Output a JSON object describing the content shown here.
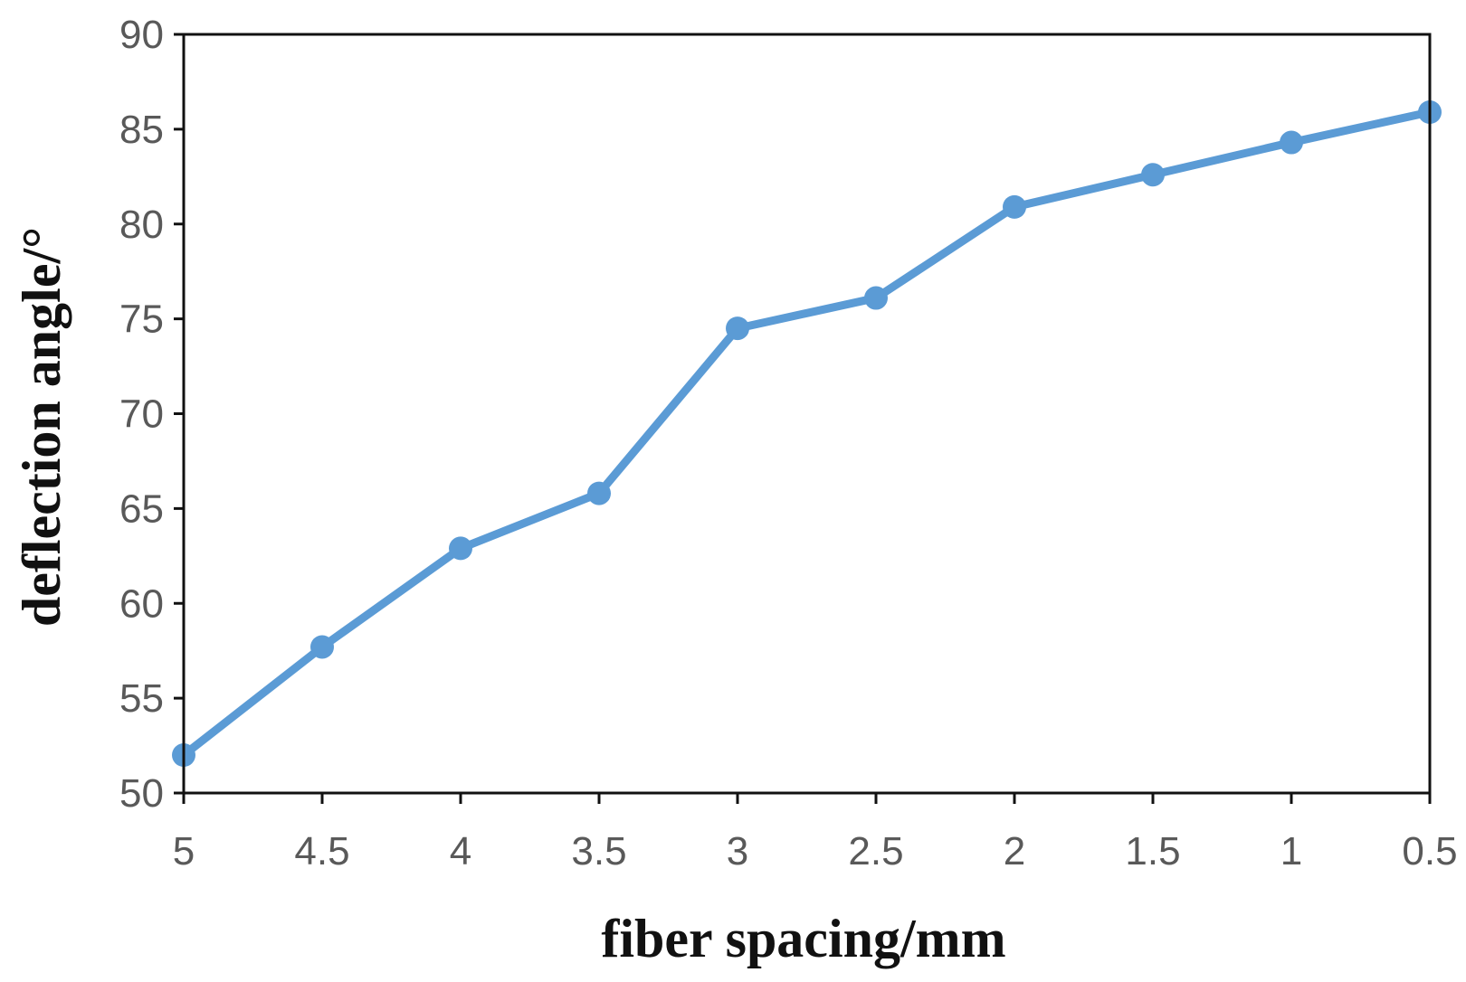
{
  "colors": {
    "series": "#5b9bd5",
    "frame": "#111111",
    "tick_text": "#595959",
    "title_text": "#111111"
  },
  "chart_data": {
    "type": "line",
    "xlabel": "fiber spacing/mm",
    "ylabel": "deflection angle/°",
    "categories": [
      "5",
      "4.5",
      "4",
      "3.5",
      "3",
      "2.5",
      "2",
      "1.5",
      "1",
      "0.5"
    ],
    "y_ticks": [
      "50",
      "55",
      "60",
      "65",
      "70",
      "75",
      "80",
      "85",
      "90"
    ],
    "ylim": [
      50,
      90
    ],
    "grid": false,
    "legend": "none",
    "series": [
      {
        "values": [
          52.0,
          57.7,
          62.9,
          65.8,
          74.5,
          76.1,
          80.9,
          82.6,
          84.3,
          85.9
        ]
      }
    ]
  }
}
